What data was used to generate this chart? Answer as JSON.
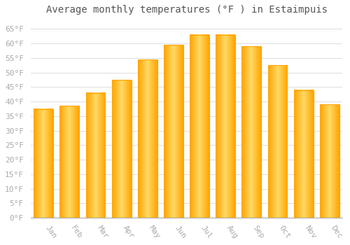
{
  "title": "Average monthly temperatures (°F ) in Estaimpuis",
  "months": [
    "Jan",
    "Feb",
    "Mar",
    "Apr",
    "May",
    "Jun",
    "Jul",
    "Aug",
    "Sep",
    "Oct",
    "Nov",
    "Dec"
  ],
  "values": [
    37.5,
    38.5,
    43.0,
    47.5,
    54.5,
    59.5,
    63.0,
    63.0,
    59.0,
    52.5,
    44.0,
    39.0
  ],
  "bar_color_center": "#FFD966",
  "bar_color_edge": "#FFA500",
  "background_color": "#FFFFFF",
  "plot_bg_color": "#FFFFFF",
  "grid_color": "#DDDDDD",
  "ylim": [
    0,
    68
  ],
  "yticks": [
    0,
    5,
    10,
    15,
    20,
    25,
    30,
    35,
    40,
    45,
    50,
    55,
    60,
    65
  ],
  "ytick_labels": [
    "0°F",
    "5°F",
    "10°F",
    "15°F",
    "20°F",
    "25°F",
    "30°F",
    "35°F",
    "40°F",
    "45°F",
    "50°F",
    "55°F",
    "60°F",
    "65°F"
  ],
  "title_fontsize": 10,
  "tick_fontsize": 8,
  "tick_color": "#AAAAAA",
  "bar_width": 0.75,
  "xlabel_rotation": -55
}
